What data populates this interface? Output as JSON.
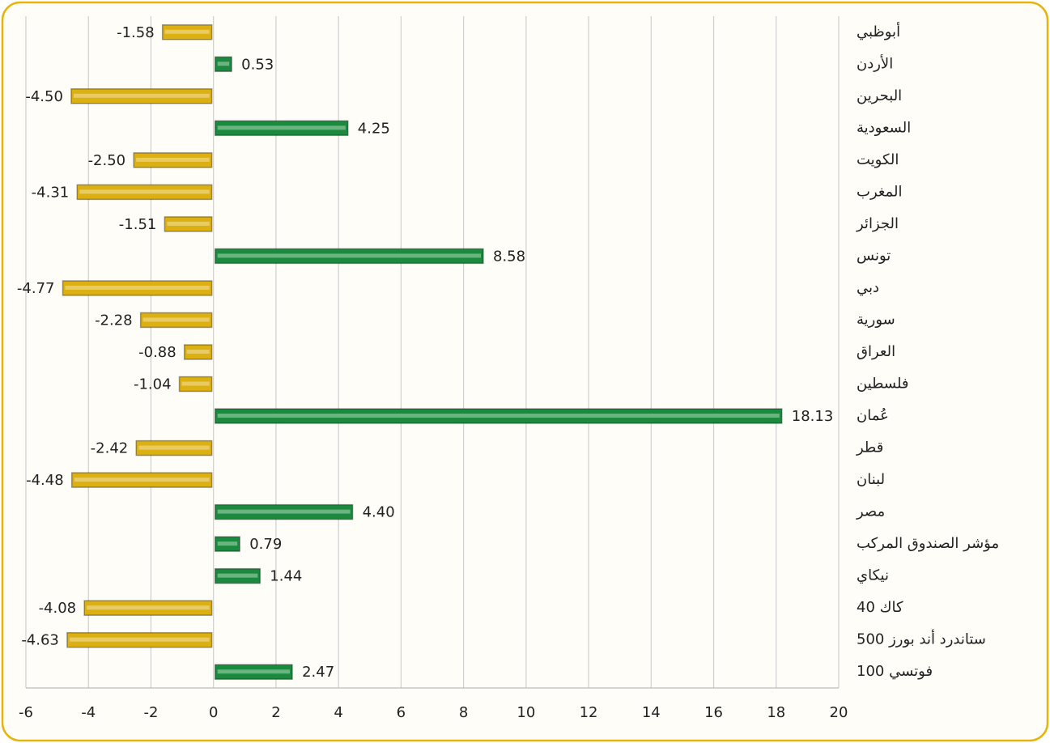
{
  "chart_data": {
    "type": "barh",
    "categories": [
      "أبوظبي",
      "الأردن",
      "البحرين",
      "السعودية",
      "الكويت",
      "المغرب",
      "الجزائر",
      "تونس",
      "دبي",
      "سورية",
      "العراق",
      "فلسطين",
      "عُمان",
      "قطر",
      "لبنان",
      "مصر",
      "مؤشر الصندوق المركب",
      "نيكاي",
      "كاك 40",
      "ستاندرد أند بورز 500",
      "فوتسي 100"
    ],
    "values": [
      -1.58,
      0.53,
      -4.5,
      4.25,
      -2.5,
      -4.31,
      -1.51,
      8.58,
      -4.77,
      -2.28,
      -0.88,
      -1.04,
      18.13,
      -2.42,
      -4.48,
      4.4,
      0.79,
      1.44,
      -4.08,
      -4.63,
      2.47
    ],
    "value_labels": [
      "-1.58",
      "0.53",
      "-4.50",
      "4.25",
      "-2.50",
      "-4.31",
      "-1.51",
      "8.58",
      "-4.77",
      "-2.28",
      "-0.88",
      "-1.04",
      "18.13",
      "-2.42",
      "-4.48",
      "4.40",
      "0.79",
      "1.44",
      "-4.08",
      "-4.63",
      "2.47"
    ],
    "color_positive": "#1c8a3e",
    "color_negative": "#dcb010",
    "xlim": [
      -6,
      20
    ],
    "xticks": [
      -6,
      -4,
      -2,
      0,
      2,
      4,
      6,
      8,
      10,
      12,
      14,
      16,
      18,
      20
    ],
    "grid": true
  }
}
